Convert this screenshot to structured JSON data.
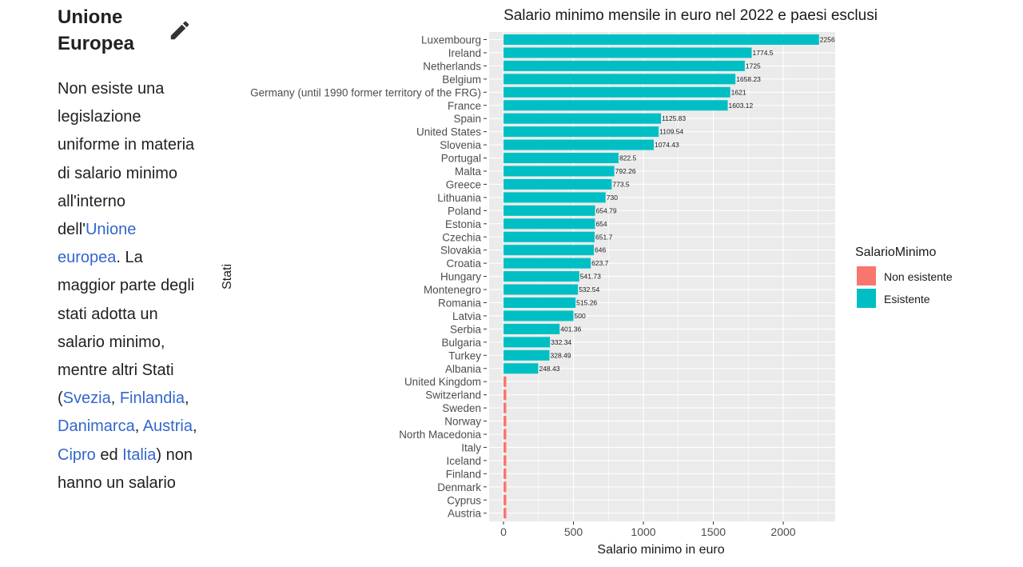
{
  "section": {
    "heading": "Unione Europea",
    "edit_icon": "pencil-icon"
  },
  "paragraph": {
    "t1": "Non esiste una legislazione uniforme in materia di salario minimo all'interno dell'",
    "link_ue": "Unione europea",
    "t2": ". La maggior parte degli stati adotta un salario minimo, mentre altri Stati (",
    "link_svezia": "Svezia",
    "sep1": ", ",
    "link_finlandia": "Finlandia",
    "sep2": ", ",
    "link_danimarca": "Danimarca",
    "sep3": ", ",
    "link_austria": "Austria",
    "sep4": ", ",
    "link_cipro": "Cipro",
    "t3": " ed ",
    "link_italia": "Italia",
    "t4": ") non hanno un salario"
  },
  "colors": {
    "link": "#3366cc",
    "esistente": "#00bfc4",
    "non_esistente": "#f8766d",
    "panel": "#ebebeb",
    "grid": "#ffffff"
  },
  "chart_data": {
    "type": "bar",
    "orientation": "horizontal",
    "title": "Salario minimo mensile in euro nel 2022 e paesi esclusi",
    "xlabel": "Salario minimo in euro",
    "ylabel": "Stati",
    "xlim": [
      0,
      2350
    ],
    "xticks": [
      0,
      500,
      1000,
      1500,
      2000
    ],
    "grid": true,
    "legend": {
      "title": "SalarioMinimo",
      "position": "right",
      "entries": [
        {
          "label": "Non esistente",
          "color": "#f8766d"
        },
        {
          "label": "Esistente",
          "color": "#00bfc4"
        }
      ]
    },
    "categories": [
      "Luxembourg",
      "Ireland",
      "Netherlands",
      "Belgium",
      "Germany (until 1990 former territory of the FRG)",
      "France",
      "Spain",
      "United States",
      "Slovenia",
      "Portugal",
      "Malta",
      "Greece",
      "Lithuania",
      "Poland",
      "Estonia",
      "Czechia",
      "Slovakia",
      "Croatia",
      "Hungary",
      "Montenegro",
      "Romania",
      "Latvia",
      "Serbia",
      "Bulgaria",
      "Turkey",
      "Albania",
      "United Kingdom",
      "Switzerland",
      "Sweden",
      "Norway",
      "North Macedonia",
      "Italy",
      "Iceland",
      "Finland",
      "Denmark",
      "Cyprus",
      "Austria"
    ],
    "values": [
      2256,
      1774.5,
      1725,
      1658.23,
      1621,
      1603.12,
      1125.83,
      1109.54,
      1074.43,
      822.5,
      792.26,
      773.5,
      730,
      654.79,
      654,
      651.7,
      646,
      623.7,
      541.73,
      532.54,
      515.26,
      500,
      401.36,
      332.34,
      328.49,
      248.43,
      0,
      0,
      0,
      0,
      0,
      0,
      0,
      0,
      0,
      0,
      0
    ],
    "data_labels": [
      "2256",
      "1774.5",
      "1725",
      "1658.23",
      "1621",
      "1603.12",
      "1125.83",
      "1109.54",
      "1074.43",
      "822.5",
      "792.26",
      "773.5",
      "730",
      "654.79",
      "654",
      "651.7",
      "646",
      "623.7",
      "541.73",
      "532.54",
      "515.26",
      "500",
      "401.36",
      "332.34",
      "328.49",
      "248.43",
      "",
      "",
      "",
      "",
      "",
      "",
      "",
      "",
      "",
      "",
      ""
    ],
    "groups": [
      "Esistente",
      "Esistente",
      "Esistente",
      "Esistente",
      "Esistente",
      "Esistente",
      "Esistente",
      "Esistente",
      "Esistente",
      "Esistente",
      "Esistente",
      "Esistente",
      "Esistente",
      "Esistente",
      "Esistente",
      "Esistente",
      "Esistente",
      "Esistente",
      "Esistente",
      "Esistente",
      "Esistente",
      "Esistente",
      "Esistente",
      "Esistente",
      "Esistente",
      "Esistente",
      "Non esistente",
      "Non esistente",
      "Non esistente",
      "Non esistente",
      "Non esistente",
      "Non esistente",
      "Non esistente",
      "Non esistente",
      "Non esistente",
      "Non esistente",
      "Non esistente"
    ]
  }
}
